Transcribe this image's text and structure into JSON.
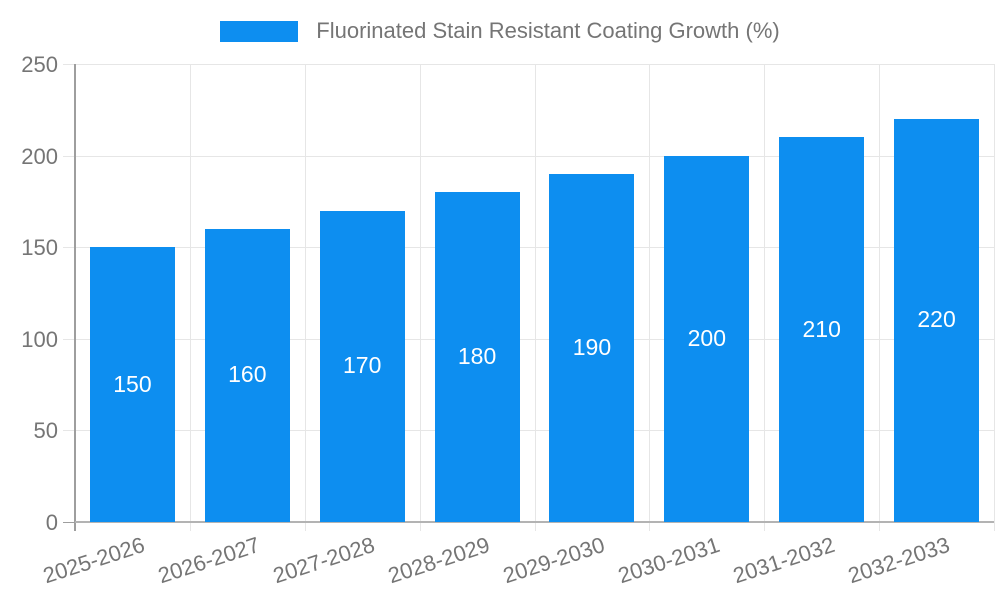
{
  "legend": {
    "label": "Fluorinated Stain Resistant Coating Growth (%)"
  },
  "chart_data": {
    "type": "bar",
    "title": "",
    "categories": [
      "2025-2026",
      "2026-2027",
      "2027-2028",
      "2028-2029",
      "2029-2030",
      "2030-2031",
      "2031-2032",
      "2032-2033"
    ],
    "series": [
      {
        "name": "Fluorinated Stain Resistant Coating Growth (%)",
        "values": [
          150,
          160,
          170,
          180,
          190,
          200,
          210,
          220
        ]
      }
    ],
    "bar_labels": [
      "150",
      "160",
      "170",
      "180",
      "190",
      "200",
      "210",
      "220"
    ],
    "ylim": [
      0,
      250
    ],
    "yticks": [
      0,
      50,
      100,
      150,
      200,
      250
    ],
    "ytick_labels": [
      "0",
      "50",
      "100",
      "150",
      "200",
      "250"
    ],
    "xlabel": "",
    "ylabel": "",
    "grid": true,
    "legend_position": "top"
  },
  "colors": {
    "bar": "#0d8ef0",
    "text": "#757575",
    "grid": "#e6e6e6",
    "y_axis": "#9e9e9e",
    "baseline": "#b3b3b3",
    "bar_label": "#ffffff",
    "background": "#ffffff"
  }
}
